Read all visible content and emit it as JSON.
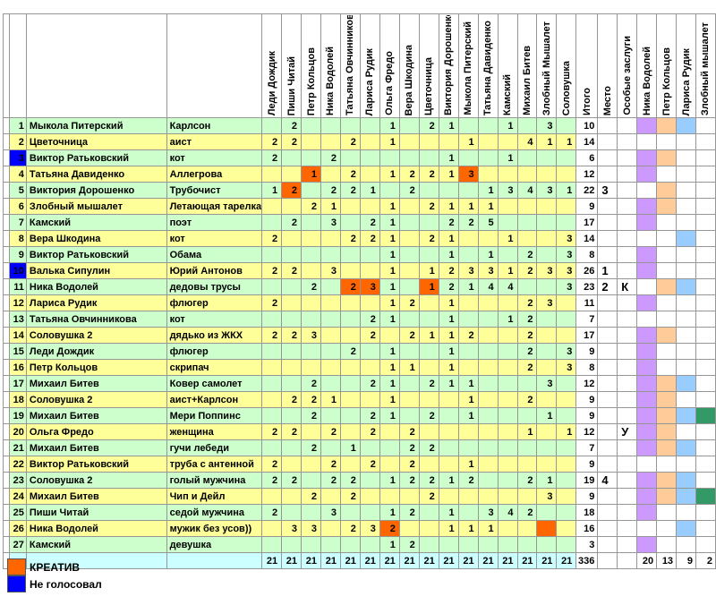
{
  "columns": {
    "raters": [
      "Леди Дождик",
      "Пиши Читай",
      "Петр Кольцов",
      "Ника Водолей",
      "Татьяна Овчинникова",
      "Лариса Рудик",
      "Ольга Фредо",
      "Вера Шкодина",
      "Цветочница",
      "Виктория Дорошенко",
      "Мыкола Питерский",
      "Татьяна Давиденко",
      "Камский",
      "Михаил Битев",
      "Злобный Мышалет",
      "Соловушка"
    ],
    "itogo": "Итого",
    "mesto": "Место",
    "osobye": "Особые заслуги",
    "flags": [
      "Ника Водолей",
      "Петр Кольцов",
      "Лариса Рудик",
      "Злобный мышалет"
    ]
  },
  "rows": [
    {
      "n": 1,
      "author": "Мыкола Питерский",
      "entry": "Карлсон",
      "votes": [
        null,
        2,
        null,
        null,
        null,
        null,
        1,
        null,
        2,
        1,
        null,
        null,
        1,
        null,
        3,
        null
      ],
      "total": 10,
      "mesto": "",
      "osobye": "",
      "flags": [
        1,
        1,
        1,
        0
      ],
      "orange": [],
      "num_blue": false
    },
    {
      "n": 2,
      "author": "Цветочница",
      "entry": "аист",
      "votes": [
        2,
        2,
        null,
        null,
        2,
        null,
        1,
        null,
        null,
        null,
        1,
        null,
        null,
        4,
        1,
        1
      ],
      "total": 14,
      "mesto": "",
      "osobye": "",
      "flags": [
        0,
        0,
        0,
        0
      ],
      "orange": [],
      "num_blue": false
    },
    {
      "n": 3,
      "author": "Виктор Ратьковский",
      "entry": "кот",
      "votes": [
        2,
        null,
        null,
        2,
        null,
        null,
        null,
        null,
        null,
        1,
        null,
        null,
        1,
        null,
        null,
        null
      ],
      "total": 6,
      "mesto": "",
      "osobye": "",
      "flags": [
        1,
        1,
        0,
        0
      ],
      "orange": [],
      "num_blue": true
    },
    {
      "n": 4,
      "author": "Татьяна Давиденко",
      "entry": "Аллегрова",
      "votes": [
        null,
        null,
        1,
        null,
        2,
        null,
        1,
        2,
        2,
        1,
        3,
        null,
        null,
        null,
        null,
        null
      ],
      "total": 12,
      "mesto": "",
      "osobye": "",
      "flags": [
        1,
        0,
        0,
        0
      ],
      "orange": [
        2,
        10
      ],
      "num_blue": false
    },
    {
      "n": 5,
      "author": "Виктория Дорошенко",
      "entry": "Трубочист",
      "votes": [
        1,
        2,
        null,
        2,
        2,
        1,
        null,
        2,
        null,
        null,
        null,
        1,
        3,
        4,
        3,
        1
      ],
      "total": 22,
      "mesto": "3",
      "osobye": "",
      "flags": [
        0,
        1,
        0,
        0
      ],
      "orange": [
        1
      ],
      "num_blue": false
    },
    {
      "n": 6,
      "author": "Злобный мышалет",
      "entry": "Летающая тарелка",
      "votes": [
        null,
        null,
        2,
        1,
        null,
        null,
        1,
        null,
        2,
        1,
        1,
        1,
        null,
        null,
        null,
        null
      ],
      "total": 9,
      "mesto": "",
      "osobye": "",
      "flags": [
        1,
        1,
        0,
        0
      ],
      "orange": [],
      "num_blue": false
    },
    {
      "n": 7,
      "author": "Камский",
      "entry": "поэт",
      "votes": [
        null,
        2,
        null,
        3,
        null,
        2,
        1,
        null,
        null,
        2,
        2,
        5,
        null,
        null,
        null,
        null
      ],
      "total": 17,
      "mesto": "",
      "osobye": "",
      "flags": [
        1,
        0,
        0,
        0
      ],
      "orange": [],
      "num_blue": false
    },
    {
      "n": 8,
      "author": "Вера Шкодина",
      "entry": "кот",
      "votes": [
        2,
        null,
        null,
        null,
        2,
        2,
        1,
        null,
        2,
        1,
        null,
        null,
        1,
        null,
        null,
        3
      ],
      "total": 14,
      "mesto": "",
      "osobye": "",
      "flags": [
        0,
        0,
        1,
        0
      ],
      "orange": [],
      "num_blue": false
    },
    {
      "n": 9,
      "author": "Виктор Ратьковский",
      "entry": "Обама",
      "votes": [
        null,
        null,
        null,
        null,
        null,
        null,
        1,
        null,
        null,
        1,
        null,
        1,
        null,
        2,
        null,
        3
      ],
      "total": 8,
      "mesto": "",
      "osobye": "",
      "flags": [
        1,
        0,
        0,
        0
      ],
      "orange": [],
      "num_blue": false
    },
    {
      "n": 10,
      "author": "Валька Сипулин",
      "entry": "Юрий Антонов",
      "votes": [
        2,
        2,
        null,
        3,
        null,
        null,
        1,
        null,
        1,
        2,
        3,
        3,
        1,
        2,
        3,
        3
      ],
      "total": 26,
      "mesto": "1",
      "osobye": "",
      "flags": [
        1,
        0,
        0,
        0
      ],
      "orange": [],
      "num_blue": true
    },
    {
      "n": 11,
      "author": "Ника Водолей",
      "entry": "дедовы трусы",
      "votes": [
        null,
        null,
        2,
        null,
        2,
        3,
        1,
        null,
        1,
        2,
        1,
        4,
        4,
        null,
        null,
        3
      ],
      "total": 23,
      "mesto": "2",
      "osobye": "К",
      "flags": [
        0,
        1,
        1,
        0
      ],
      "orange": [
        4,
        5,
        8
      ],
      "num_blue": false
    },
    {
      "n": 12,
      "author": "Лариса Рудик",
      "entry": "флюгер",
      "votes": [
        2,
        null,
        null,
        null,
        null,
        null,
        1,
        2,
        null,
        1,
        null,
        null,
        null,
        2,
        3,
        null
      ],
      "total": 11,
      "mesto": "",
      "osobye": "",
      "flags": [
        1,
        0,
        0,
        0
      ],
      "orange": [],
      "num_blue": false
    },
    {
      "n": 13,
      "author": "Татьяна Овчинникова",
      "entry": "кот",
      "votes": [
        null,
        null,
        null,
        null,
        null,
        2,
        1,
        null,
        null,
        1,
        null,
        null,
        1,
        2,
        null,
        null
      ],
      "total": 7,
      "mesto": "",
      "osobye": "",
      "flags": [
        0,
        0,
        0,
        0
      ],
      "orange": [],
      "num_blue": false
    },
    {
      "n": 14,
      "author": "Соловушка 2",
      "entry": "дядько из ЖКХ",
      "votes": [
        2,
        2,
        3,
        null,
        null,
        2,
        null,
        2,
        1,
        1,
        2,
        null,
        null,
        2,
        null,
        null
      ],
      "total": 17,
      "mesto": "",
      "osobye": "",
      "flags": [
        1,
        1,
        0,
        0
      ],
      "orange": [],
      "num_blue": false
    },
    {
      "n": 15,
      "author": "Леди Дождик",
      "entry": "флюгер",
      "votes": [
        null,
        null,
        null,
        null,
        2,
        null,
        1,
        null,
        null,
        1,
        null,
        null,
        null,
        2,
        null,
        3
      ],
      "total": 9,
      "mesto": "",
      "osobye": "",
      "flags": [
        1,
        0,
        0,
        0
      ],
      "orange": [],
      "num_blue": false
    },
    {
      "n": 16,
      "author": "Петр Кольцов",
      "entry": "скрипач",
      "votes": [
        null,
        null,
        null,
        null,
        null,
        null,
        1,
        1,
        null,
        1,
        null,
        null,
        null,
        2,
        null,
        3
      ],
      "total": 8,
      "mesto": "",
      "osobye": "",
      "flags": [
        1,
        0,
        0,
        0
      ],
      "orange": [],
      "num_blue": false
    },
    {
      "n": 17,
      "author": "Михаил Битев",
      "entry": "Ковер самолет",
      "votes": [
        null,
        null,
        2,
        null,
        null,
        2,
        1,
        null,
        2,
        1,
        1,
        null,
        null,
        null,
        3,
        null
      ],
      "total": 12,
      "mesto": "",
      "osobye": "",
      "flags": [
        1,
        1,
        1,
        0
      ],
      "orange": [],
      "num_blue": false
    },
    {
      "n": 18,
      "author": "Соловушка 2",
      "entry": "аист+Карлсон",
      "votes": [
        null,
        2,
        2,
        1,
        null,
        null,
        1,
        null,
        null,
        null,
        1,
        null,
        null,
        2,
        null,
        null
      ],
      "total": 9,
      "mesto": "",
      "osobye": "",
      "flags": [
        1,
        1,
        0,
        0
      ],
      "orange": [],
      "num_blue": false
    },
    {
      "n": 19,
      "author": "Михаил Битев",
      "entry": "Мери Поппинс",
      "votes": [
        null,
        null,
        2,
        null,
        null,
        2,
        1,
        null,
        2,
        null,
        1,
        null,
        null,
        null,
        1,
        null
      ],
      "total": 9,
      "mesto": "",
      "osobye": "",
      "flags": [
        1,
        1,
        1,
        1
      ],
      "orange": [],
      "num_blue": false
    },
    {
      "n": 20,
      "author": "Ольга Фредо",
      "entry": "женщина",
      "votes": [
        2,
        2,
        null,
        2,
        null,
        2,
        null,
        2,
        null,
        null,
        null,
        null,
        null,
        1,
        null,
        1
      ],
      "total": 12,
      "mesto": "",
      "osobye": "У",
      "flags": [
        1,
        1,
        0,
        0
      ],
      "orange": [],
      "num_blue": false
    },
    {
      "n": 21,
      "author": "Михаил Битев",
      "entry": "гучи лебеди",
      "votes": [
        null,
        null,
        2,
        null,
        1,
        null,
        null,
        2,
        2,
        null,
        null,
        null,
        null,
        null,
        null,
        null
      ],
      "total": 7,
      "mesto": "",
      "osobye": "",
      "flags": [
        1,
        1,
        1,
        0
      ],
      "orange": [],
      "num_blue": false
    },
    {
      "n": 22,
      "author": "Виктор Ратьковский",
      "entry": "труба с антенной",
      "votes": [
        2,
        null,
        null,
        2,
        null,
        2,
        null,
        2,
        null,
        null,
        1,
        null,
        null,
        null,
        null,
        null
      ],
      "total": 9,
      "mesto": "",
      "osobye": "",
      "flags": [
        0,
        0,
        0,
        0
      ],
      "orange": [],
      "num_blue": false
    },
    {
      "n": 23,
      "author": "Соловушка 2",
      "entry": "голый мужчина",
      "votes": [
        2,
        2,
        null,
        2,
        2,
        null,
        1,
        2,
        2,
        1,
        2,
        null,
        null,
        2,
        1,
        null
      ],
      "total": 19,
      "mesto": "4",
      "osobye": "",
      "flags": [
        1,
        1,
        1,
        0
      ],
      "orange": [],
      "num_blue": false
    },
    {
      "n": 24,
      "author": "Михаил Битев",
      "entry": "Чип и Дейл",
      "votes": [
        null,
        null,
        2,
        null,
        2,
        null,
        null,
        null,
        2,
        null,
        null,
        null,
        null,
        null,
        3,
        null
      ],
      "total": 9,
      "mesto": "",
      "osobye": "",
      "flags": [
        1,
        1,
        1,
        1
      ],
      "orange": [],
      "num_blue": false
    },
    {
      "n": 25,
      "author": "Пиши Читай",
      "entry": "седой мужчина",
      "votes": [
        2,
        null,
        null,
        3,
        null,
        null,
        1,
        2,
        null,
        1,
        null,
        3,
        4,
        2,
        null,
        null
      ],
      "total": 18,
      "mesto": "",
      "osobye": "",
      "flags": [
        1,
        0,
        0,
        0
      ],
      "orange": [],
      "num_blue": false
    },
    {
      "n": 26,
      "author": "Ника Водолей",
      "entry": "мужик без усов))",
      "votes": [
        null,
        3,
        3,
        null,
        2,
        3,
        2,
        null,
        null,
        1,
        1,
        1,
        null,
        null,
        null,
        null
      ],
      "total": 16,
      "mesto": "",
      "osobye": "",
      "flags": [
        0,
        0,
        1,
        0
      ],
      "orange": [
        6,
        14
      ],
      "num_blue": false
    },
    {
      "n": 27,
      "author": "Камский",
      "entry": "девушка",
      "votes": [
        null,
        null,
        null,
        null,
        null,
        null,
        1,
        2,
        null,
        null,
        null,
        null,
        null,
        null,
        null,
        null
      ],
      "total": 3,
      "mesto": "",
      "osobye": "",
      "flags": [
        1,
        0,
        0,
        0
      ],
      "orange": [],
      "num_blue": false
    }
  ],
  "totals": {
    "per_rater": [
      21,
      21,
      21,
      21,
      21,
      21,
      21,
      21,
      21,
      21,
      21,
      21,
      21,
      21,
      21,
      21
    ],
    "grand": 336,
    "flag_counts": [
      20,
      13,
      9,
      2
    ]
  },
  "legend": {
    "creative": "КРЕАТИВ",
    "no_vote": "Не голосовал"
  },
  "colors": {
    "row_green": "#CCFFCC",
    "row_yellow": "#FFFF99",
    "totals_cyan": "#CCFFFF",
    "orange": "#FF6600",
    "blue": "#0000FF",
    "flag_violet": "#CC99FF",
    "flag_peach": "#FFCC99",
    "flag_lightblue": "#99CCFF",
    "flag_green": "#339966",
    "grid": "#969696"
  }
}
